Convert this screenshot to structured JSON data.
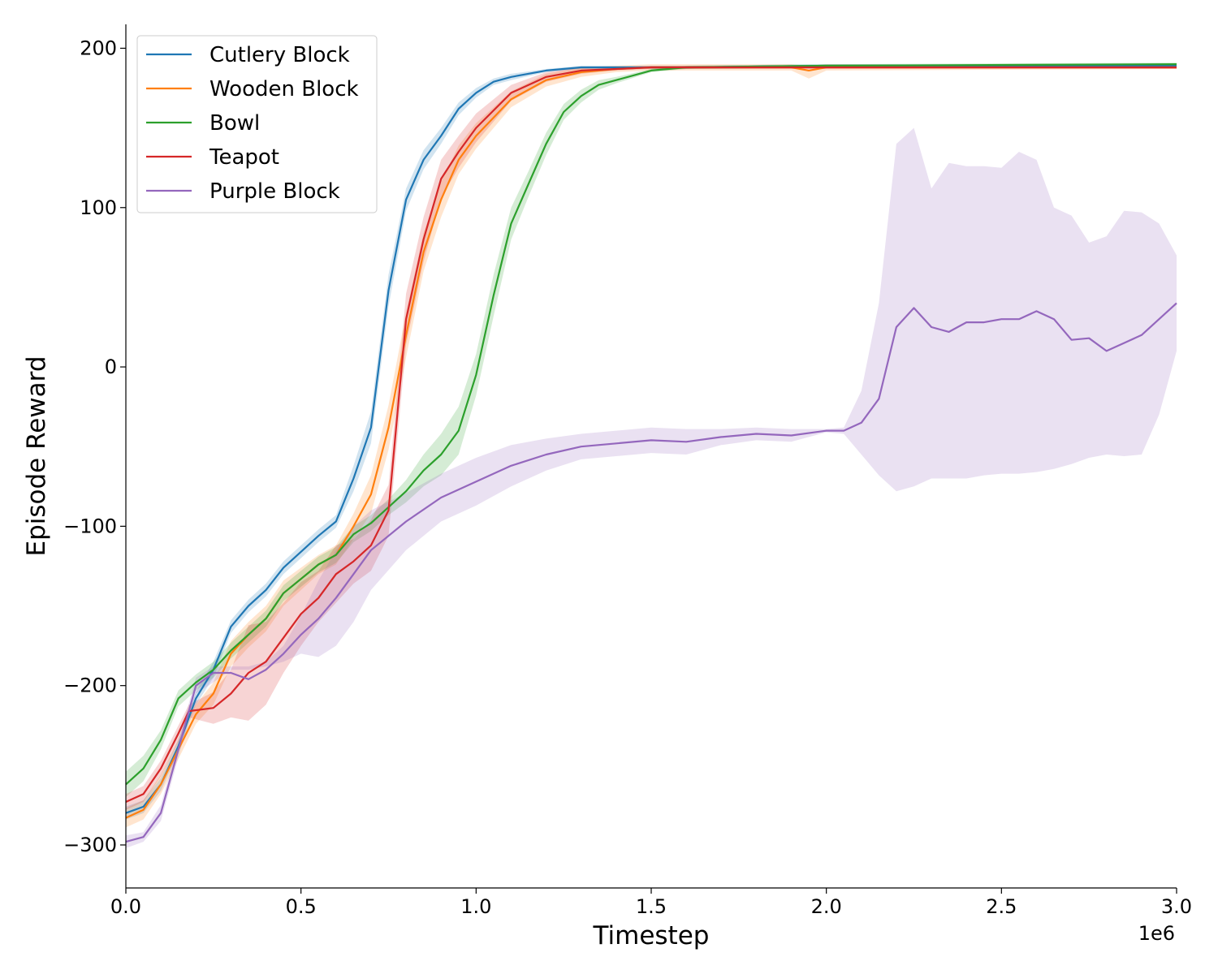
{
  "chart_data": {
    "type": "line",
    "title": "",
    "xlabel": "Timestep",
    "ylabel": "Episode Reward",
    "x_offset_label": "1e6",
    "xlim": [
      0,
      3000000
    ],
    "ylim": [
      -327,
      215
    ],
    "x_ticks": [
      0,
      500000,
      1000000,
      1500000,
      2000000,
      2500000,
      3000000
    ],
    "x_tick_labels": [
      "0.0",
      "0.5",
      "1.0",
      "1.5",
      "2.0",
      "2.5",
      "3.0"
    ],
    "y_ticks": [
      -300,
      -200,
      -100,
      0,
      100,
      200
    ],
    "y_tick_labels": [
      "−300",
      "−200",
      "−100",
      "0",
      "100",
      "200"
    ],
    "grid": false,
    "legend_position": "top-left",
    "series": [
      {
        "name": "Cutlery Block",
        "color": "#1f77b4",
        "x": [
          0,
          50000,
          100000,
          150000,
          200000,
          250000,
          300000,
          350000,
          400000,
          450000,
          500000,
          550000,
          600000,
          650000,
          700000,
          750000,
          800000,
          850000,
          900000,
          950000,
          1000000,
          1050000,
          1100000,
          1200000,
          1300000,
          1400000,
          1500000,
          1600000,
          2000000,
          3000000
        ],
        "values": [
          -280,
          -276,
          -262,
          -238,
          -208,
          -190,
          -163,
          -150,
          -140,
          -126,
          -116,
          -106,
          -97,
          -70,
          -38,
          48,
          105,
          130,
          145,
          162,
          172,
          179,
          182,
          186,
          188,
          188,
          188,
          188,
          189,
          189
        ],
        "lower": [
          -284,
          -280,
          -266,
          -242,
          -212,
          -195,
          -167,
          -154,
          -144,
          -130,
          -120,
          -110,
          -101,
          -78,
          -48,
          38,
          98,
          124,
          140,
          158,
          169,
          177,
          180,
          185,
          187,
          187,
          187,
          187,
          188,
          188
        ],
        "upper": [
          -276,
          -272,
          -258,
          -234,
          -204,
          -185,
          -159,
          -146,
          -136,
          -122,
          -112,
          -102,
          -93,
          -62,
          -28,
          58,
          112,
          136,
          150,
          166,
          175,
          181,
          184,
          187,
          189,
          189,
          189,
          189,
          190,
          190
        ]
      },
      {
        "name": "Wooden Block",
        "color": "#ff7f0e",
        "x": [
          0,
          50000,
          100000,
          150000,
          200000,
          250000,
          300000,
          350000,
          400000,
          450000,
          500000,
          550000,
          600000,
          650000,
          700000,
          750000,
          800000,
          850000,
          900000,
          950000,
          1000000,
          1100000,
          1200000,
          1300000,
          1400000,
          1500000,
          1600000,
          1900000,
          1950000,
          2000000,
          3000000
        ],
        "values": [
          -283,
          -278,
          -262,
          -240,
          -218,
          -205,
          -180,
          -168,
          -158,
          -142,
          -133,
          -124,
          -118,
          -100,
          -80,
          -38,
          20,
          72,
          105,
          130,
          145,
          168,
          180,
          185,
          187,
          188,
          188,
          188,
          186,
          188,
          188
        ],
        "lower": [
          -289,
          -284,
          -268,
          -246,
          -224,
          -212,
          -188,
          -176,
          -166,
          -150,
          -140,
          -130,
          -124,
          -108,
          -92,
          -52,
          6,
          60,
          94,
          121,
          137,
          163,
          176,
          182,
          185,
          186,
          186,
          186,
          181,
          186,
          187
        ],
        "upper": [
          -277,
          -272,
          -256,
          -234,
          -212,
          -198,
          -172,
          -160,
          -150,
          -134,
          -126,
          -118,
          -112,
          -92,
          -68,
          -24,
          34,
          84,
          116,
          139,
          153,
          173,
          184,
          188,
          189,
          190,
          190,
          190,
          189,
          190,
          189
        ]
      },
      {
        "name": "Bowl",
        "color": "#2ca02c",
        "x": [
          0,
          50000,
          100000,
          150000,
          200000,
          250000,
          300000,
          350000,
          400000,
          450000,
          500000,
          550000,
          600000,
          650000,
          700000,
          750000,
          800000,
          850000,
          900000,
          950000,
          1000000,
          1050000,
          1100000,
          1150000,
          1200000,
          1250000,
          1300000,
          1350000,
          1400000,
          1500000,
          1600000,
          2000000,
          3000000
        ],
        "values": [
          -262,
          -252,
          -234,
          -208,
          -198,
          -190,
          -178,
          -168,
          -158,
          -142,
          -133,
          -124,
          -118,
          -105,
          -98,
          -88,
          -78,
          -65,
          -55,
          -40,
          -5,
          45,
          90,
          115,
          140,
          160,
          170,
          177,
          180,
          186,
          188,
          189,
          190
        ],
        "lower": [
          -270,
          -260,
          -240,
          -213,
          -203,
          -195,
          -183,
          -173,
          -163,
          -147,
          -138,
          -129,
          -123,
          -110,
          -103,
          -93,
          -85,
          -75,
          -68,
          -55,
          -18,
          32,
          80,
          107,
          133,
          155,
          166,
          174,
          178,
          185,
          187,
          188,
          189
        ],
        "upper": [
          -254,
          -244,
          -228,
          -203,
          -193,
          -185,
          -173,
          -163,
          -153,
          -137,
          -128,
          -119,
          -113,
          -100,
          -93,
          -83,
          -71,
          -55,
          -42,
          -25,
          8,
          58,
          100,
          123,
          147,
          165,
          174,
          180,
          182,
          187,
          189,
          190,
          191
        ]
      },
      {
        "name": "Teapot",
        "color": "#d62728",
        "x": [
          0,
          50000,
          100000,
          150000,
          180000,
          250000,
          300000,
          350000,
          400000,
          450000,
          500000,
          550000,
          600000,
          650000,
          700000,
          750000,
          800000,
          850000,
          900000,
          950000,
          1000000,
          1100000,
          1200000,
          1300000,
          1400000,
          1500000,
          1600000,
          2000000,
          3000000
        ],
        "values": [
          -273,
          -268,
          -252,
          -230,
          -216,
          -214,
          -205,
          -192,
          -185,
          -170,
          -155,
          -145,
          -130,
          -122,
          -112,
          -90,
          30,
          80,
          118,
          135,
          150,
          172,
          182,
          186,
          187,
          188,
          188,
          188,
          188
        ],
        "lower": [
          -278,
          -273,
          -257,
          -235,
          -220,
          -224,
          -220,
          -222,
          -212,
          -192,
          -175,
          -160,
          -148,
          -136,
          -128,
          -106,
          14,
          66,
          106,
          125,
          141,
          167,
          179,
          184,
          186,
          187,
          187,
          187,
          187
        ],
        "upper": [
          -268,
          -263,
          -247,
          -225,
          -212,
          -204,
          -190,
          -162,
          -160,
          -148,
          -135,
          -128,
          -112,
          -108,
          -96,
          -74,
          46,
          94,
          130,
          145,
          159,
          177,
          185,
          188,
          188,
          189,
          189,
          189,
          189
        ]
      },
      {
        "name": "Purple Block",
        "color": "#9467bd",
        "x": [
          0,
          50000,
          100000,
          150000,
          200000,
          250000,
          300000,
          350000,
          400000,
          450000,
          500000,
          550000,
          600000,
          650000,
          700000,
          800000,
          900000,
          1000000,
          1100000,
          1200000,
          1300000,
          1400000,
          1500000,
          1600000,
          1700000,
          1800000,
          1900000,
          2000000,
          2050000,
          2100000,
          2150000,
          2200000,
          2250000,
          2300000,
          2350000,
          2400000,
          2450000,
          2500000,
          2550000,
          2600000,
          2650000,
          2700000,
          2750000,
          2800000,
          2850000,
          2900000,
          2950000,
          3000000
        ],
        "values": [
          -298,
          -295,
          -280,
          -240,
          -200,
          -192,
          -192,
          -196,
          -190,
          -180,
          -168,
          -158,
          -145,
          -130,
          -115,
          -97,
          -82,
          -72,
          -62,
          -55,
          -50,
          -48,
          -46,
          -47,
          -44,
          -42,
          -43,
          -40,
          -40,
          -35,
          -20,
          25,
          37,
          25,
          22,
          28,
          28,
          30,
          30,
          35,
          30,
          17,
          18,
          10,
          15,
          20,
          30,
          40
        ],
        "lower": [
          -302,
          -298,
          -285,
          -245,
          -205,
          -198,
          -190,
          -190,
          -188,
          -185,
          -180,
          -182,
          -175,
          -160,
          -140,
          -115,
          -97,
          -87,
          -75,
          -65,
          -58,
          -56,
          -54,
          -55,
          -49,
          -46,
          -47,
          -41,
          -42,
          -55,
          -68,
          -78,
          -75,
          -70,
          -70,
          -70,
          -68,
          -67,
          -67,
          -66,
          -64,
          -61,
          -57,
          -55,
          -56,
          -55,
          -30,
          10
        ],
        "upper": [
          -294,
          -292,
          -275,
          -235,
          -195,
          -188,
          -188,
          -188,
          -185,
          -175,
          -156,
          -134,
          -115,
          -100,
          -90,
          -79,
          -67,
          -57,
          -49,
          -45,
          -42,
          -40,
          -38,
          -39,
          -39,
          -38,
          -39,
          -39,
          -38,
          -15,
          40,
          140,
          150,
          112,
          128,
          126,
          126,
          125,
          135,
          130,
          100,
          95,
          78,
          82,
          98,
          97,
          90,
          70
        ]
      }
    ]
  }
}
